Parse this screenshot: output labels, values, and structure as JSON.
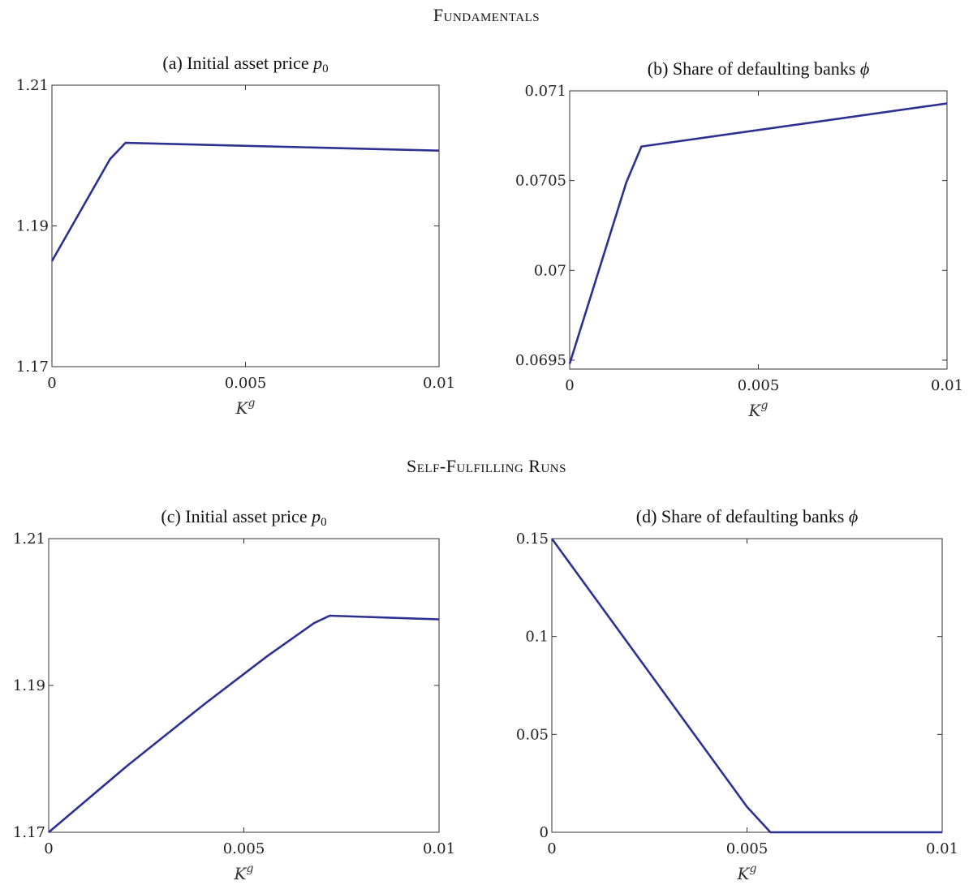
{
  "sections": {
    "top": "Fundamentals",
    "bottom": "Self-Fulfilling Runs"
  },
  "colors": {
    "line": "#2c3191",
    "axes": "#333333"
  },
  "chart_data": [
    {
      "id": "a",
      "type": "line",
      "title": "(a) Initial asset price ",
      "title_var": "p",
      "title_sub": "0",
      "xlabel_base": "K",
      "xlabel_sup": "g",
      "xlim": [
        0,
        0.01
      ],
      "ylim": [
        1.17,
        1.21
      ],
      "xticks": [
        0,
        0.005,
        0.01
      ],
      "xtick_labels": [
        "0",
        "0.005",
        "0.01"
      ],
      "yticks": [
        1.17,
        1.19,
        1.21
      ],
      "ytick_labels": [
        "1.17",
        "1.19",
        "1.21"
      ],
      "x": [
        0,
        0.0015,
        0.0019,
        0.01
      ],
      "y": [
        1.185,
        1.1995,
        1.2018,
        1.2007
      ]
    },
    {
      "id": "b",
      "type": "line",
      "title": "(b) Share of defaulting banks ",
      "title_var": "ϕ",
      "title_sub": "",
      "xlabel_base": "K",
      "xlabel_sup": "g",
      "xlim": [
        0,
        0.01
      ],
      "ylim": [
        0.06945,
        0.071
      ],
      "xticks": [
        0,
        0.005,
        0.01
      ],
      "xtick_labels": [
        "0",
        "0.005",
        "0.01"
      ],
      "yticks": [
        0.0695,
        0.07,
        0.0705,
        0.071
      ],
      "ytick_labels": [
        "0.0695",
        "0.07",
        "0.0705",
        "0.071"
      ],
      "x": [
        0,
        0.0015,
        0.0019,
        0.01
      ],
      "y": [
        0.06948,
        0.07049,
        0.07069,
        0.07093
      ]
    },
    {
      "id": "c",
      "type": "line",
      "title": "(c) Initial asset price ",
      "title_var": "p",
      "title_sub": "0",
      "xlabel_base": "K",
      "xlabel_sup": "g",
      "xlim": [
        0,
        0.01
      ],
      "ylim": [
        1.17,
        1.21
      ],
      "xticks": [
        0,
        0.005,
        0.01
      ],
      "xtick_labels": [
        "0",
        "0.005",
        "0.01"
      ],
      "yticks": [
        1.17,
        1.19,
        1.21
      ],
      "ytick_labels": [
        "1.17",
        "1.19",
        "1.21"
      ],
      "x": [
        0,
        0.002,
        0.004,
        0.0056,
        0.0068,
        0.0072,
        0.01
      ],
      "y": [
        1.17,
        1.179,
        1.1875,
        1.194,
        1.1985,
        1.1995,
        1.199
      ]
    },
    {
      "id": "d",
      "type": "line",
      "title": "(d) Share of defaulting banks ",
      "title_var": "ϕ",
      "title_sub": "",
      "xlabel_base": "K",
      "xlabel_sup": "g",
      "xlim": [
        0,
        0.01
      ],
      "ylim": [
        0,
        0.15
      ],
      "xticks": [
        0,
        0.005,
        0.01
      ],
      "xtick_labels": [
        "0",
        "0.005",
        "0.01"
      ],
      "yticks": [
        0,
        0.05,
        0.1,
        0.15
      ],
      "ytick_labels": [
        "0",
        "0.05",
        "0.1",
        "0.15"
      ],
      "x": [
        0,
        0.005,
        0.0056,
        0.01
      ],
      "y": [
        0.15,
        0.013,
        0,
        0
      ]
    }
  ]
}
